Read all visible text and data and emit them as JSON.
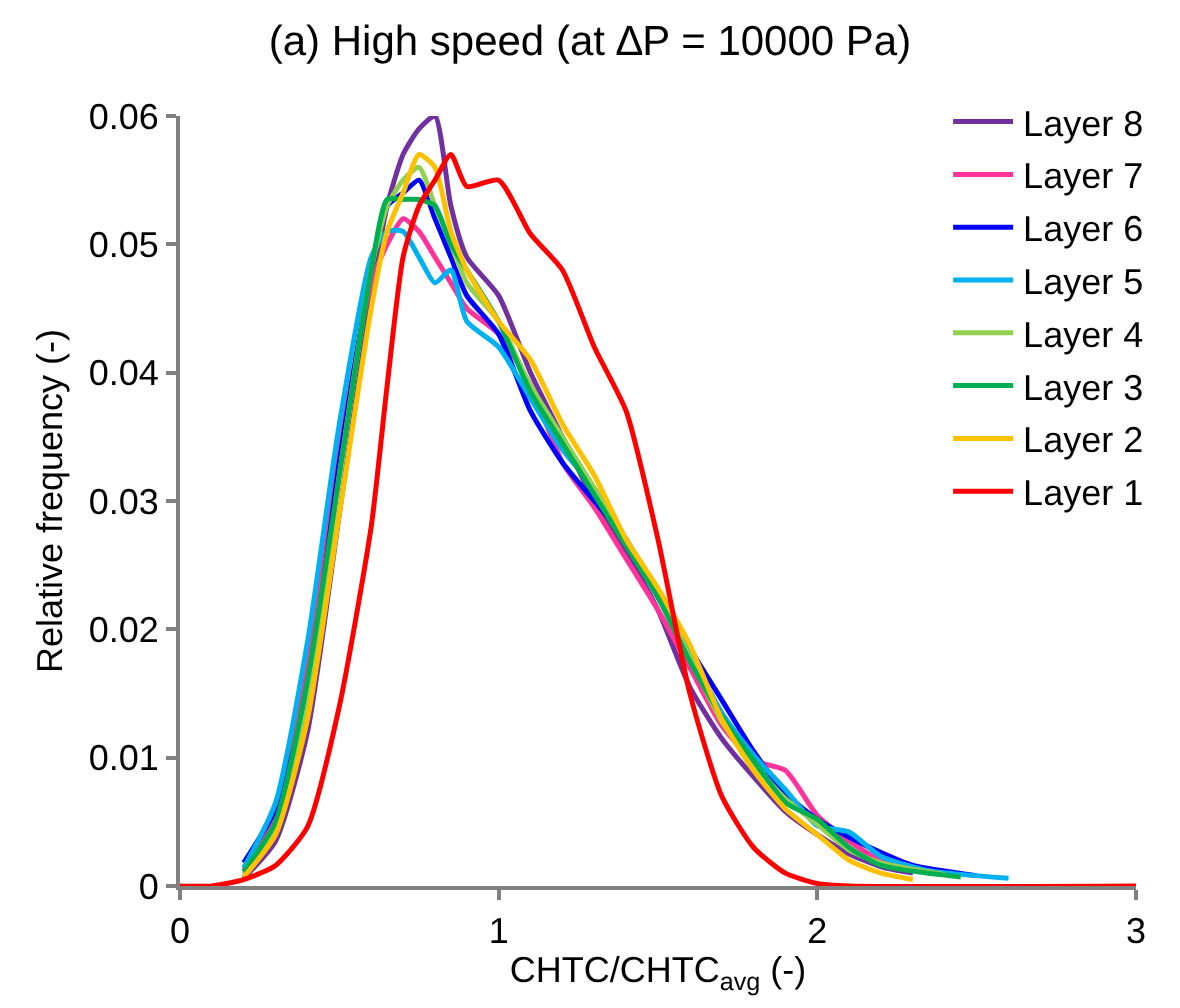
{
  "chart_data": {
    "type": "line",
    "title": "(a) High speed (at ∆P = 10000 Pa)",
    "xlabel": "CHTC/CHTC$_{avg}$ (-)",
    "ylabel": "Relative frequency (-)",
    "series": [
      {
        "name": "Layer 8",
        "color": "#7030a0",
        "x": [
          0.2,
          0.3,
          0.4,
          0.5,
          0.6,
          0.65,
          0.7,
          0.75,
          0.8,
          0.85,
          0.9,
          1.0,
          1.1,
          1.2,
          1.3,
          1.4,
          1.5,
          1.6,
          1.7,
          1.8,
          1.9,
          2.0,
          2.1,
          2.2,
          2.3
        ],
        "values": [
          0.0006,
          0.0035,
          0.012,
          0.029,
          0.046,
          0.053,
          0.057,
          0.059,
          0.06,
          0.053,
          0.049,
          0.046,
          0.04,
          0.035,
          0.03,
          0.026,
          0.0215,
          0.0155,
          0.0115,
          0.0085,
          0.0058,
          0.004,
          0.0025,
          0.0015,
          0.001
        ]
      },
      {
        "name": "Layer 7",
        "color": "#ff3399",
        "x": [
          0.2,
          0.3,
          0.4,
          0.5,
          0.6,
          0.65,
          0.7,
          0.75,
          0.8,
          0.85,
          0.9,
          1.0,
          1.1,
          1.2,
          1.3,
          1.4,
          1.5,
          1.6,
          1.7,
          1.8,
          1.9,
          2.0,
          2.1,
          2.2,
          2.4
        ],
        "values": [
          0.0012,
          0.0055,
          0.017,
          0.034,
          0.047,
          0.05,
          0.052,
          0.051,
          0.049,
          0.047,
          0.045,
          0.043,
          0.039,
          0.033,
          0.0295,
          0.0255,
          0.0215,
          0.017,
          0.0125,
          0.0098,
          0.009,
          0.0055,
          0.0035,
          0.002,
          0.001
        ]
      },
      {
        "name": "Layer 6",
        "color": "#0000ff",
        "x": [
          0.2,
          0.3,
          0.4,
          0.5,
          0.6,
          0.65,
          0.7,
          0.75,
          0.8,
          0.85,
          0.9,
          1.0,
          1.1,
          1.2,
          1.3,
          1.4,
          1.5,
          1.6,
          1.7,
          1.8,
          1.9,
          2.0,
          2.1,
          2.2,
          2.3,
          2.5
        ],
        "values": [
          0.0018,
          0.006,
          0.015,
          0.033,
          0.048,
          0.053,
          0.054,
          0.055,
          0.052,
          0.049,
          0.046,
          0.043,
          0.037,
          0.033,
          0.03,
          0.027,
          0.0225,
          0.0185,
          0.0145,
          0.0105,
          0.0072,
          0.0052,
          0.0038,
          0.0026,
          0.0016,
          0.0008
        ]
      },
      {
        "name": "Layer 5",
        "color": "#00b0f0",
        "x": [
          0.2,
          0.3,
          0.4,
          0.5,
          0.6,
          0.65,
          0.7,
          0.75,
          0.8,
          0.85,
          0.9,
          1.0,
          1.1,
          1.2,
          1.3,
          1.4,
          1.5,
          1.6,
          1.7,
          1.8,
          1.9,
          2.0,
          2.1,
          2.2,
          2.35,
          2.6
        ],
        "values": [
          0.0014,
          0.0065,
          0.019,
          0.036,
          0.049,
          0.051,
          0.051,
          0.049,
          0.047,
          0.048,
          0.044,
          0.042,
          0.038,
          0.034,
          0.031,
          0.027,
          0.023,
          0.0182,
          0.0135,
          0.0102,
          0.0075,
          0.0047,
          0.0042,
          0.0023,
          0.0012,
          0.0006
        ]
      },
      {
        "name": "Layer 4",
        "color": "#92d050",
        "x": [
          0.2,
          0.3,
          0.4,
          0.5,
          0.6,
          0.65,
          0.7,
          0.75,
          0.8,
          0.85,
          0.9,
          1.0,
          1.1,
          1.2,
          1.3,
          1.4,
          1.5,
          1.6,
          1.7,
          1.8,
          1.9,
          2.0,
          2.1,
          2.2,
          2.4
        ],
        "values": [
          0.0009,
          0.0045,
          0.014,
          0.032,
          0.048,
          0.053,
          0.055,
          0.056,
          0.053,
          0.05,
          0.047,
          0.044,
          0.039,
          0.035,
          0.031,
          0.027,
          0.023,
          0.0178,
          0.0128,
          0.0095,
          0.0068,
          0.0048,
          0.0028,
          0.0018,
          0.0009
        ]
      },
      {
        "name": "Layer 3",
        "color": "#00b050",
        "x": [
          0.2,
          0.3,
          0.4,
          0.5,
          0.6,
          0.65,
          0.7,
          0.75,
          0.8,
          0.85,
          0.9,
          1.0,
          1.1,
          1.2,
          1.3,
          1.4,
          1.5,
          1.6,
          1.7,
          1.8,
          1.9,
          2.0,
          2.1,
          2.2,
          2.45
        ],
        "values": [
          0.0011,
          0.005,
          0.016,
          0.032,
          0.048,
          0.0535,
          0.0535,
          0.0535,
          0.053,
          0.05,
          0.048,
          0.044,
          0.0385,
          0.0345,
          0.0305,
          0.0265,
          0.0225,
          0.0175,
          0.0132,
          0.0098,
          0.0065,
          0.0052,
          0.003,
          0.0016,
          0.0007
        ]
      },
      {
        "name": "Layer 2",
        "color": "#ffc000",
        "x": [
          0.2,
          0.3,
          0.4,
          0.5,
          0.6,
          0.65,
          0.7,
          0.75,
          0.8,
          0.85,
          0.9,
          1.0,
          1.1,
          1.2,
          1.3,
          1.4,
          1.5,
          1.6,
          1.7,
          1.8,
          1.9,
          2.0,
          2.1,
          2.2,
          2.3
        ],
        "values": [
          0.0007,
          0.004,
          0.013,
          0.029,
          0.045,
          0.051,
          0.054,
          0.057,
          0.056,
          0.051,
          0.048,
          0.044,
          0.041,
          0.036,
          0.032,
          0.027,
          0.0232,
          0.0188,
          0.013,
          0.009,
          0.006,
          0.004,
          0.002,
          0.001,
          0.0005
        ]
      },
      {
        "name": "Layer 1",
        "color": "#ff0000",
        "x": [
          0,
          0.1,
          0.2,
          0.3,
          0.4,
          0.5,
          0.6,
          0.65,
          0.7,
          0.75,
          0.8,
          0.85,
          0.9,
          1.0,
          1.1,
          1.2,
          1.3,
          1.4,
          1.5,
          1.6,
          1.7,
          1.8,
          1.9,
          2.0,
          2.1,
          3.0
        ],
        "values": [
          0,
          0,
          0.0005,
          0.0016,
          0.0046,
          0.014,
          0.028,
          0.039,
          0.049,
          0.053,
          0.055,
          0.057,
          0.0545,
          0.055,
          0.0508,
          0.048,
          0.042,
          0.037,
          0.027,
          0.015,
          0.007,
          0.003,
          0.001,
          0.0002,
          0,
          0
        ]
      }
    ],
    "xlim": [
      0,
      3
    ],
    "xticks": [
      0,
      1,
      2,
      3
    ],
    "ylim": [
      0,
      0.06
    ],
    "yticks": [
      0,
      0.01,
      0.02,
      0.03,
      0.04,
      0.05,
      0.06
    ],
    "grid": false,
    "legend": "top right",
    "marker": "none",
    "line_style": "solid"
  }
}
